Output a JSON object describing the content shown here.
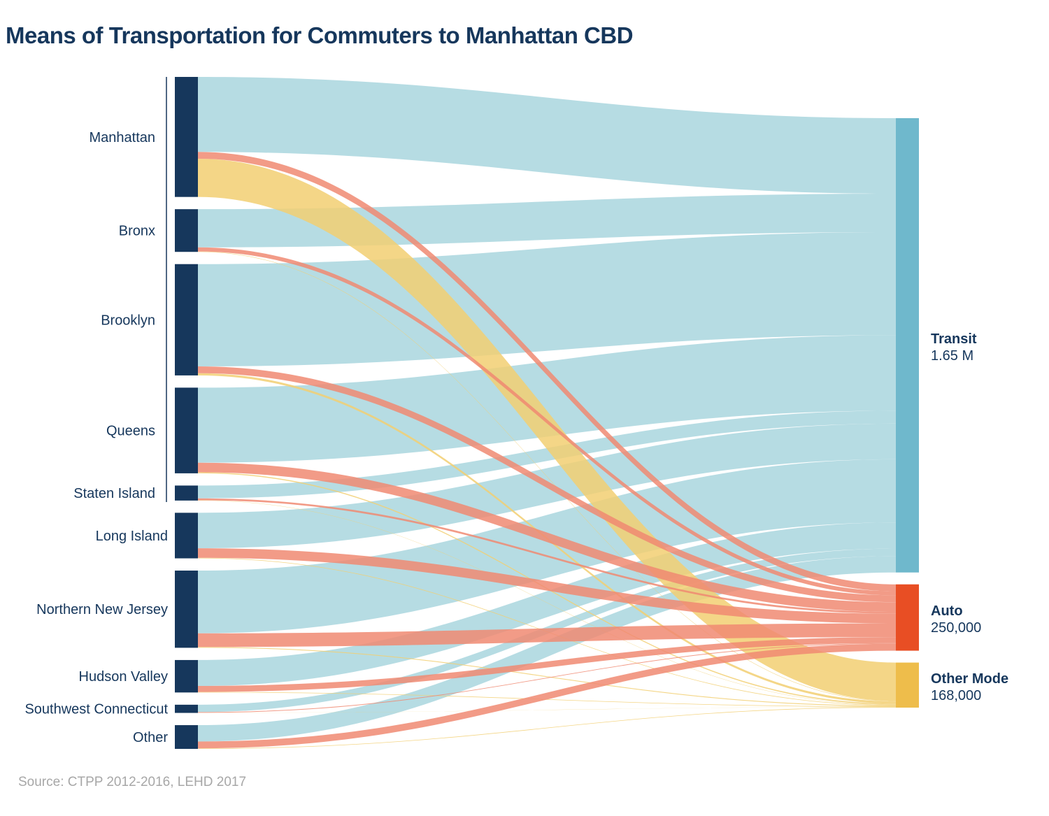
{
  "title": "Means of Transportation for Commuters to Manhattan CBD",
  "source": "Source: CTPP 2012-2016, LEHD 2017",
  "colors": {
    "node": "#16375c",
    "transit_node": "#6fb8cc",
    "auto_node": "#e84e24",
    "other_node": "#eebd4b",
    "transit_flow": "#b6dce3",
    "auto_flow": "#f08a72",
    "other_flow": "#f2cf72"
  },
  "chart_data": {
    "type": "sankey",
    "title": "Means of Transportation for Commuters to Manhattan CBD",
    "nyc_bracket": [
      "Manhattan",
      "Bronx",
      "Brooklyn",
      "Queens",
      "Staten Island"
    ],
    "sources": [
      "Manhattan",
      "Bronx",
      "Brooklyn",
      "Queens",
      "Staten Island",
      "Long Island",
      "Northern New Jersey",
      "Hudson Valley",
      "Southwest Connecticut",
      "Other"
    ],
    "targets": [
      {
        "name": "Transit",
        "value_label": "1.65 M",
        "value": 1650000
      },
      {
        "name": "Auto",
        "value_label": "250,000",
        "value": 250000
      },
      {
        "name": "Other Mode",
        "value_label": "168,000",
        "value": 168000
      }
    ],
    "flows": [
      {
        "source": "Manhattan",
        "transit": 275000,
        "auto": 25000,
        "other": 140000
      },
      {
        "source": "Bronx",
        "transit": 140000,
        "auto": 15000,
        "other": 1500
      },
      {
        "source": "Brooklyn",
        "transit": 375000,
        "auto": 25000,
        "other": 8000
      },
      {
        "source": "Queens",
        "transit": 275000,
        "auto": 35000,
        "other": 4000
      },
      {
        "source": "Staten Island",
        "transit": 47000,
        "auto": 7000,
        "other": 1000
      },
      {
        "source": "Long Island",
        "transit": 130000,
        "auto": 35000,
        "other": 2000
      },
      {
        "source": "Northern New Jersey",
        "transit": 230000,
        "auto": 50000,
        "other": 3000
      },
      {
        "source": "Hudson Valley",
        "transit": 95000,
        "auto": 22000,
        "other": 2000
      },
      {
        "source": "Southwest Connecticut",
        "transit": 27000,
        "auto": 2500,
        "other": 500
      },
      {
        "source": "Other",
        "transit": 60000,
        "auto": 25000,
        "other": 2000
      }
    ]
  }
}
